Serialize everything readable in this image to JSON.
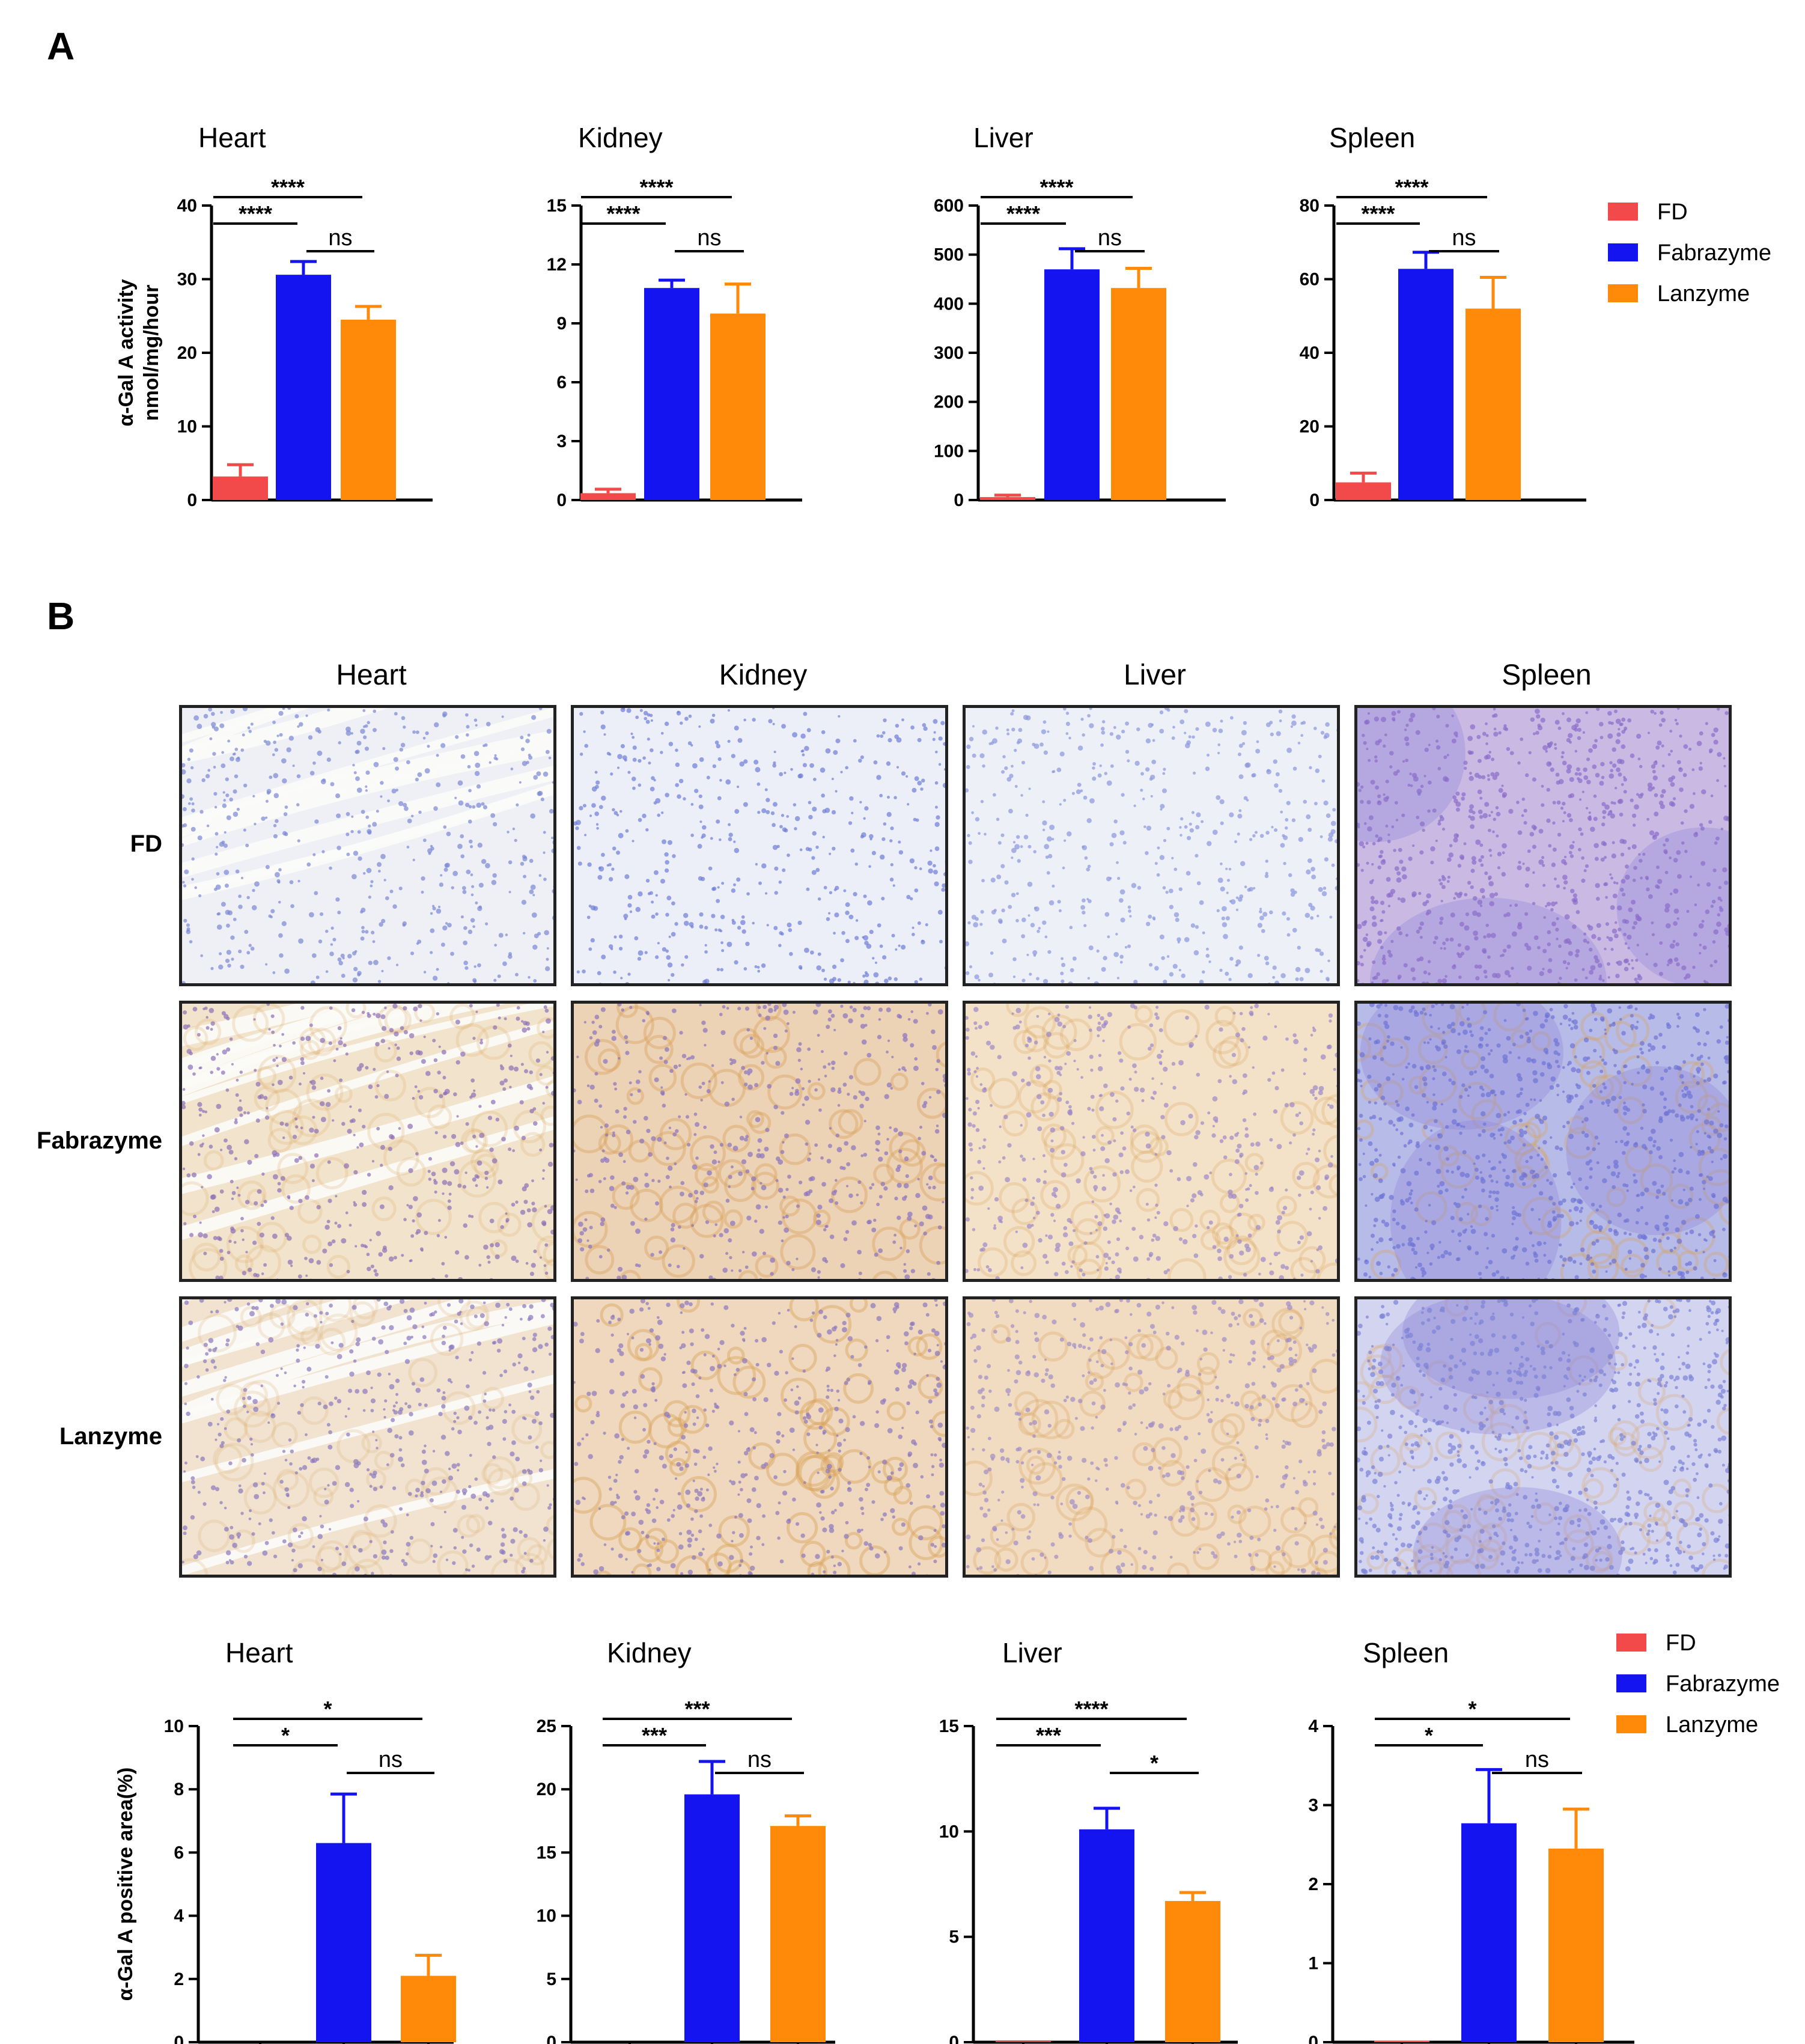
{
  "panels": {
    "a_label": "A",
    "b_label": "B"
  },
  "colors": {
    "FD": "#f24a4a",
    "Fabrazyme": "#1414f0",
    "Lanzyme": "#ff8a0a"
  },
  "chart_data": [
    {
      "type": "bar",
      "panel": "A",
      "title": "Heart",
      "categories": [
        "FD",
        "Fabrazyme",
        "Lanzyme"
      ],
      "values": [
        3.2,
        30.6,
        24.5
      ],
      "errors": [
        1.6,
        1.8,
        1.8
      ],
      "ylabel": "α-Gal A activity\nnmol/mg/hour",
      "ylim": [
        0,
        40
      ],
      "yticks": [
        0,
        10,
        20,
        30,
        40
      ],
      "significance": [
        {
          "from": 0,
          "to": 1,
          "label": "****",
          "level": 2
        },
        {
          "from": 0,
          "to": 2,
          "label": "****",
          "level": 3
        },
        {
          "from": 1,
          "to": 2,
          "label": "ns",
          "level": 1
        }
      ]
    },
    {
      "type": "bar",
      "panel": "A",
      "title": "Kidney",
      "categories": [
        "FD",
        "Fabrazyme",
        "Lanzyme"
      ],
      "values": [
        0.35,
        10.8,
        9.5
      ],
      "errors": [
        0.2,
        0.4,
        1.5
      ],
      "ylabel": "",
      "ylim": [
        0,
        15
      ],
      "yticks": [
        0,
        3,
        6,
        9,
        12,
        15
      ],
      "significance": [
        {
          "from": 0,
          "to": 1,
          "label": "****",
          "level": 2
        },
        {
          "from": 0,
          "to": 2,
          "label": "****",
          "level": 3
        },
        {
          "from": 1,
          "to": 2,
          "label": "ns",
          "level": 1
        }
      ]
    },
    {
      "type": "bar",
      "panel": "A",
      "title": "Liver",
      "categories": [
        "FD",
        "Fabrazyme",
        "Lanzyme"
      ],
      "values": [
        6,
        470,
        432
      ],
      "errors": [
        4,
        42,
        40
      ],
      "ylabel": "",
      "ylim": [
        0,
        600
      ],
      "yticks": [
        0,
        100,
        200,
        300,
        400,
        500,
        600
      ],
      "significance": [
        {
          "from": 0,
          "to": 1,
          "label": "****",
          "level": 2
        },
        {
          "from": 0,
          "to": 2,
          "label": "****",
          "level": 3
        },
        {
          "from": 1,
          "to": 2,
          "label": "ns",
          "level": 1
        }
      ]
    },
    {
      "type": "bar",
      "panel": "A",
      "title": "Spleen",
      "categories": [
        "FD",
        "Fabrazyme",
        "Lanzyme"
      ],
      "values": [
        4.8,
        62.8,
        52
      ],
      "errors": [
        2.5,
        4.5,
        8.5
      ],
      "ylabel": "",
      "ylim": [
        0,
        80
      ],
      "yticks": [
        0,
        20,
        40,
        60,
        80
      ],
      "significance": [
        {
          "from": 0,
          "to": 1,
          "label": "****",
          "level": 2
        },
        {
          "from": 0,
          "to": 2,
          "label": "****",
          "level": 3
        },
        {
          "from": 1,
          "to": 2,
          "label": "ns",
          "level": 1
        }
      ]
    },
    {
      "type": "bar",
      "panel": "B",
      "title": "Heart",
      "categories": [
        "FD",
        "Fabrazyme",
        "Lanzyme"
      ],
      "values": [
        0,
        6.3,
        2.1
      ],
      "errors": [
        0,
        1.55,
        0.65
      ],
      "ylabel": "α-Gal A positive area(%)",
      "ylim": [
        0,
        10
      ],
      "yticks": [
        0,
        2,
        4,
        6,
        8,
        10
      ],
      "significance": [
        {
          "from": 0,
          "to": 1,
          "label": "*",
          "level": 2
        },
        {
          "from": 0,
          "to": 2,
          "label": "*",
          "level": 3
        },
        {
          "from": 1,
          "to": 2,
          "label": "ns",
          "level": 1
        }
      ]
    },
    {
      "type": "bar",
      "panel": "B",
      "title": "Kidney",
      "categories": [
        "FD",
        "Fabrazyme",
        "Lanzyme"
      ],
      "values": [
        0,
        19.6,
        17.1
      ],
      "errors": [
        0,
        2.6,
        0.8
      ],
      "ylabel": "",
      "ylim": [
        0,
        25
      ],
      "yticks": [
        0,
        5,
        10,
        15,
        20,
        25
      ],
      "significance": [
        {
          "from": 0,
          "to": 1,
          "label": "***",
          "level": 2
        },
        {
          "from": 0,
          "to": 2,
          "label": "***",
          "level": 3
        },
        {
          "from": 1,
          "to": 2,
          "label": "ns",
          "level": 1
        }
      ]
    },
    {
      "type": "bar",
      "panel": "B",
      "title": "Liver",
      "categories": [
        "FD",
        "Fabrazyme",
        "Lanzyme"
      ],
      "values": [
        0.05,
        10.1,
        6.7
      ],
      "errors": [
        0,
        1.0,
        0.4
      ],
      "ylabel": "",
      "ylim": [
        0,
        15
      ],
      "yticks": [
        0,
        5,
        10,
        15
      ],
      "significance": [
        {
          "from": 0,
          "to": 1,
          "label": "***",
          "level": 2
        },
        {
          "from": 0,
          "to": 2,
          "label": "****",
          "level": 3
        },
        {
          "from": 1,
          "to": 2,
          "label": "*",
          "level": 1
        }
      ]
    },
    {
      "type": "bar",
      "panel": "B",
      "title": "Spleen",
      "categories": [
        "FD",
        "Fabrazyme",
        "Lanzyme"
      ],
      "values": [
        0.02,
        2.77,
        2.45
      ],
      "errors": [
        0,
        0.68,
        0.5
      ],
      "ylabel": "",
      "ylim": [
        0,
        4
      ],
      "yticks": [
        0,
        1,
        2,
        3,
        4
      ],
      "significance": [
        {
          "from": 0,
          "to": 1,
          "label": "*",
          "level": 2
        },
        {
          "from": 0,
          "to": 2,
          "label": "*",
          "level": 3
        },
        {
          "from": 1,
          "to": 2,
          "label": "ns",
          "level": 1
        }
      ]
    }
  ],
  "legend_entries": [
    "FD",
    "Fabrazyme",
    "Lanzyme"
  ],
  "micrographs": {
    "columns": [
      "Heart",
      "Kidney",
      "Liver",
      "Spleen"
    ],
    "rows": [
      "FD",
      "Fabrazyme",
      "Lanzyme"
    ]
  }
}
